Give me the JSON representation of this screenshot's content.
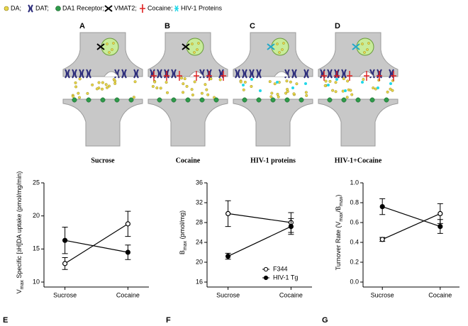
{
  "diagram": {
    "legend": [
      "DA;",
      "DAT;",
      "DA1 Receptor;",
      "VMAT2;",
      "Cocaine;",
      "HIV-1 Proteins"
    ],
    "panels": [
      {
        "letter": "A",
        "label": "Sucrose"
      },
      {
        "letter": "B",
        "label": "Cocaine"
      },
      {
        "letter": "C",
        "label": "HIV-1 proteins"
      },
      {
        "letter": "D",
        "label": "HIV-1+Cocaine"
      }
    ]
  },
  "chart_data": [
    {
      "type": "line",
      "panel": "E",
      "y_label": [
        "V",
        "max",
        " Specific [",
        "3",
        "H]DA uptake (pmol/mg/min)"
      ],
      "categories": [
        "Sucrose",
        "Cocaine"
      ],
      "ylim": [
        10,
        25
      ],
      "yticks": [
        10,
        15,
        20,
        25
      ],
      "series": [
        {
          "color": "#000000",
          "marker": "open",
          "values": [
            12.8,
            18.8
          ],
          "errors": [
            0.9,
            1.9
          ]
        },
        {
          "color": "#000000",
          "marker": "filled",
          "values": [
            16.3,
            14.5
          ],
          "errors": [
            2.0,
            1.1
          ]
        }
      ]
    },
    {
      "type": "line",
      "panel": "F",
      "y_label": [
        "B",
        "max",
        " (pmol/mg)"
      ],
      "categories": [
        "Sucrose",
        "Cocaine"
      ],
      "ylim": [
        16,
        36
      ],
      "yticks": [
        16,
        20,
        24,
        28,
        32,
        36
      ],
      "legend": "bottom-right",
      "series": [
        {
          "name": "F344",
          "color": "#000000",
          "marker": "open",
          "values": [
            29.8,
            28.0
          ],
          "errors": [
            2.6,
            2.0
          ]
        },
        {
          "name": "HIV-1 Tg",
          "color": "#000000",
          "marker": "filled",
          "values": [
            21.2,
            27.2
          ],
          "errors": [
            0.6,
            1.6
          ]
        }
      ]
    },
    {
      "type": "line",
      "panel": "G",
      "y_label": [
        "Turnover Rate (",
        "V",
        "max",
        "/",
        "B",
        "max",
        ")"
      ],
      "categories": [
        "Sucrose",
        "Cocaine"
      ],
      "ylim": [
        0,
        1
      ],
      "yticks": [
        {
          "value": 0,
          "label": "0.0"
        },
        0.2,
        0.4,
        0.6,
        0.8,
        {
          "value": 1,
          "label": "1.0"
        }
      ],
      "series": [
        {
          "color": "#000000",
          "marker": "open",
          "values": [
            0.43,
            0.69
          ],
          "errors": [
            0.02,
            0.1
          ]
        },
        {
          "color": "#000000",
          "marker": "filled",
          "values": [
            0.76,
            0.56
          ],
          "errors": [
            0.08,
            0.07
          ]
        }
      ]
    }
  ]
}
